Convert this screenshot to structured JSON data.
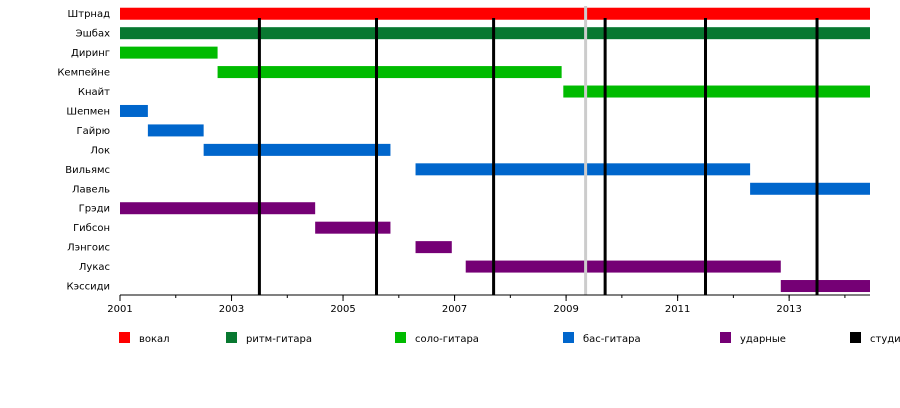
{
  "chart_data": {
    "type": "timeline",
    "members": [
      "Штрнад",
      "Эшбах",
      "Диринг",
      "Кемпейне",
      "Кнайт",
      "Шепмен",
      "Гайрю",
      "Лок",
      "Вильямс",
      "Лавель",
      "Грэди",
      "Гибсон",
      "Лэнгоис",
      "Лукас",
      "Кэссиди"
    ],
    "bars": [
      {
        "member": "Штрнад",
        "role": "vocal",
        "start": 2001.0,
        "end": 2014.45
      },
      {
        "member": "Эшбах",
        "role": "rhythm",
        "start": 2001.0,
        "end": 2014.45
      },
      {
        "member": "Диринг",
        "role": "lead",
        "start": 2001.0,
        "end": 2002.75
      },
      {
        "member": "Кемпейне",
        "role": "lead",
        "start": 2002.75,
        "end": 2008.92
      },
      {
        "member": "Кнайт",
        "role": "lead",
        "start": 2008.95,
        "end": 2014.45
      },
      {
        "member": "Шепмен",
        "role": "bass",
        "start": 2001.0,
        "end": 2001.5
      },
      {
        "member": "Гайрю",
        "role": "bass",
        "start": 2001.5,
        "end": 2002.5
      },
      {
        "member": "Лок",
        "role": "bass",
        "start": 2002.5,
        "end": 2005.85
      },
      {
        "member": "Вильямс",
        "role": "bass",
        "start": 2006.3,
        "end": 2012.3
      },
      {
        "member": "Лавель",
        "role": "bass",
        "start": 2012.3,
        "end": 2014.45
      },
      {
        "member": "Грэди",
        "role": "drums",
        "start": 2001.0,
        "end": 2004.5
      },
      {
        "member": "Гибсон",
        "role": "drums",
        "start": 2004.5,
        "end": 2005.85
      },
      {
        "member": "Лэнгоис",
        "role": "drums",
        "start": 2006.3,
        "end": 2006.95
      },
      {
        "member": "Лукас",
        "role": "drums",
        "start": 2007.2,
        "end": 2012.85
      },
      {
        "member": "Кэссиди",
        "role": "drums",
        "start": 2012.85,
        "end": 2014.45
      }
    ],
    "studio_albums": [
      2003.5,
      2005.6,
      2007.7,
      2009.7,
      2011.5,
      2013.5
    ],
    "gray_marker": 2009.35,
    "x_ticks": [
      "2001",
      "2003",
      "2005",
      "2007",
      "2009",
      "2011",
      "2013"
    ],
    "xlim": [
      2001,
      2014.45
    ],
    "legend": [
      {
        "key": "vocal",
        "label": "вокал",
        "color": "#ff0000"
      },
      {
        "key": "rhythm",
        "label": "ритм-гитара",
        "color": "#087830"
      },
      {
        "key": "lead",
        "label": "соло-гитара",
        "color": "#00bb00"
      },
      {
        "key": "bass",
        "label": "бас-гитара",
        "color": "#0066cc"
      },
      {
        "key": "drums",
        "label": "ударные",
        "color": "#750075"
      },
      {
        "key": "studio",
        "label": "студи",
        "color": "#000000"
      }
    ],
    "gray_color": "#cccccc"
  }
}
